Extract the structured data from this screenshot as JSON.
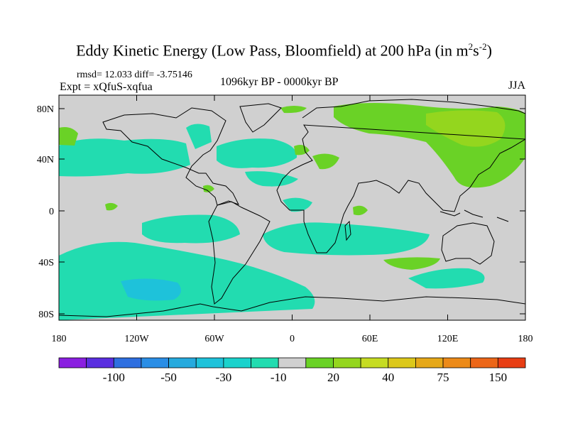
{
  "title": {
    "main": "Eddy Kinetic Energy (Low Pass, Bloomfield) at 200 hPa (in m",
    "sup1": "2",
    "mid": "s",
    "sup2": "-2",
    "end": ")"
  },
  "stats": "rmsd= 12.033 diff= -3.75146",
  "experiment": "Expt = xQfuS-xqfua",
  "period": "1096kyr BP - 0000kyr BP",
  "season": "JJA",
  "lat_labels": [
    "80N",
    "40N",
    "0",
    "40S",
    "80S"
  ],
  "lon_labels": [
    "180",
    "120W",
    "60W",
    "0",
    "60E",
    "120E",
    "180"
  ],
  "colorbar": {
    "colors": [
      "#8a1fe0",
      "#5a2ee0",
      "#2e6fe0",
      "#2a8ee6",
      "#26aade",
      "#1ec2da",
      "#1ad2cc",
      "#22dcb0",
      "#d0d0d0",
      "#6ad226",
      "#94d61e",
      "#c6dc22",
      "#dcc81a",
      "#e6a818",
      "#ec8a18",
      "#ec6618",
      "#e83e14"
    ],
    "labels": [
      "-100",
      "-50",
      "-30",
      "-10",
      "20",
      "40",
      "75",
      "150"
    ]
  },
  "colors": {
    "ocean_background": "#d0d0d0",
    "negative_fill": "#22dcb0",
    "strong_negative_fill": "#1ec2da",
    "positive_fill": "#6ad226",
    "strong_positive_fill": "#94d61e"
  }
}
